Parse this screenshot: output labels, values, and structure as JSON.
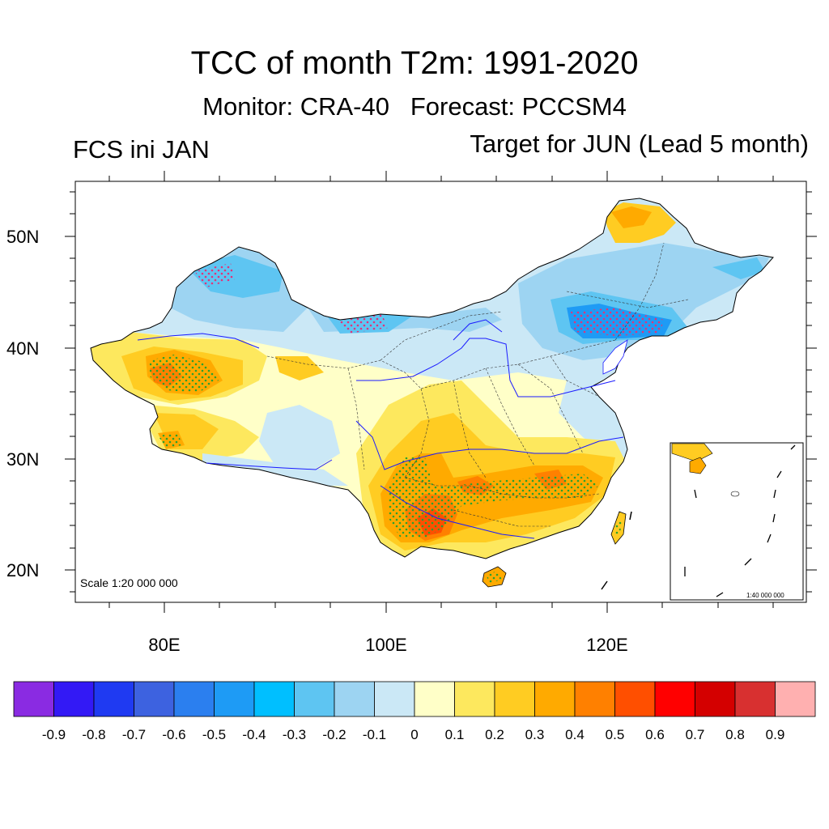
{
  "header": {
    "title": "TCC of month T2m: 1991-2020",
    "subtitle": "Monitor: CRA-40   Forecast: PCCSM4",
    "left_label": "FCS ini JAN",
    "right_label": "Target for JUN (Lead 5 month)"
  },
  "map": {
    "lat_labels": [
      "50N",
      "40N",
      "30N",
      "20N"
    ],
    "lon_labels": [
      "80E",
      "100E",
      "120E"
    ],
    "scale_label": "Scale 1:20 000 000",
    "inset_scale_label": "1:40 000 000"
  },
  "colorbar": {
    "labels": [
      "-0.9",
      "-0.8",
      "-0.7",
      "-0.6",
      "-0.5",
      "-0.4",
      "-0.3",
      "-0.2",
      "-0.1",
      "0",
      "0.1",
      "0.2",
      "0.3",
      "0.4",
      "0.5",
      "0.6",
      "0.7",
      "0.8",
      "0.9"
    ],
    "colors": [
      "#8a2be2",
      "#3319f5",
      "#1f3af2",
      "#3d62e0",
      "#2b7fef",
      "#1e9bf5",
      "#00bfff",
      "#5ec5f2",
      "#9dd4f2",
      "#cbe8f6",
      "#ffffc8",
      "#fde85e",
      "#ffcc22",
      "#ffaa00",
      "#ff8000",
      "#ff4f00",
      "#ff0000",
      "#d40000",
      "#d83030",
      "#ffb0b0"
    ]
  },
  "colors": {
    "river": "#1a1aff",
    "border": "#000000",
    "stipple": "#2ca02c"
  }
}
